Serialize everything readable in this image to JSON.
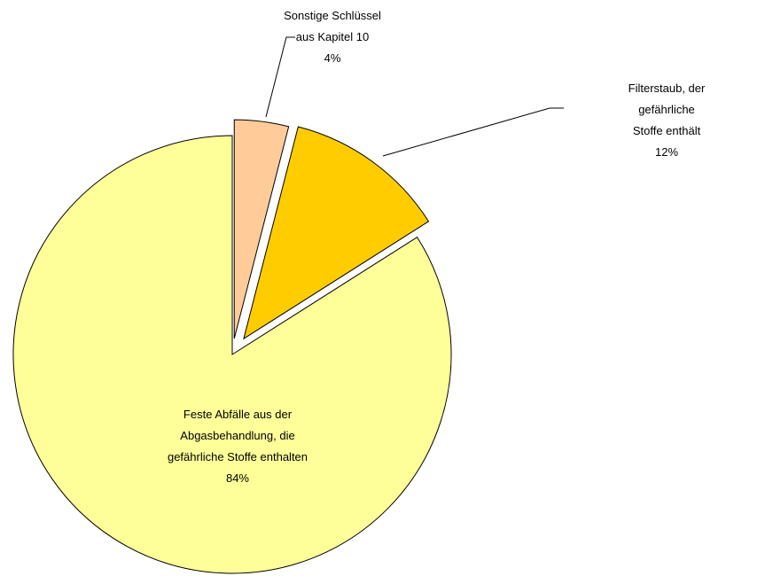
{
  "chart_data": {
    "type": "pie",
    "categories": [
      "Sonstige Schlüssel\naus Kapitel 10",
      "Filterstaub, der gefährliche\nStoffe enthält",
      "Feste Abfälle aus der\nAbgasbehandlung, die\ngefährliche Stoffe enthalten"
    ],
    "values": [
      4,
      12,
      84
    ],
    "value_labels": [
      "4%",
      "12%",
      "84%"
    ],
    "colors": [
      "#FFCC99",
      "#FFCC00",
      "#FFFF99"
    ]
  }
}
